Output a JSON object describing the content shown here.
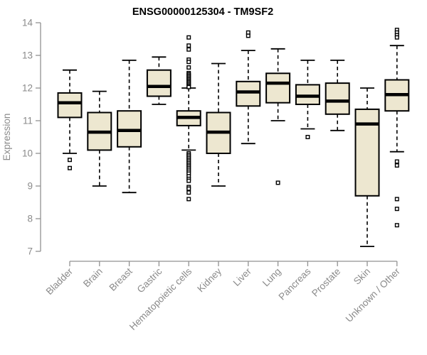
{
  "chart_data": {
    "type": "boxplot",
    "title": "ENSG00000125304 - TM9SF2",
    "ylabel": "Expression",
    "xlabel": "",
    "ylim": [
      7,
      14
    ],
    "yticks": [
      7,
      8,
      9,
      10,
      11,
      12,
      13,
      14
    ],
    "grid": false,
    "legend": false,
    "categories": [
      "Bladder",
      "Brain",
      "Breast",
      "Gastric",
      "Hematopoietic cells",
      "Kidney",
      "Liver",
      "Lung",
      "Pancreas",
      "Prostate",
      "Skin",
      "Unknown / Other"
    ],
    "series": [
      {
        "name": "Bladder",
        "whisker_low": 10.0,
        "q1": 11.1,
        "median": 11.55,
        "q3": 11.85,
        "whisker_high": 12.55,
        "outliers": [
          9.8,
          9.55
        ]
      },
      {
        "name": "Brain",
        "whisker_low": 9.0,
        "q1": 10.1,
        "median": 10.65,
        "q3": 11.25,
        "whisker_high": 11.9,
        "outliers": []
      },
      {
        "name": "Breast",
        "whisker_low": 8.8,
        "q1": 10.2,
        "median": 10.7,
        "q3": 11.3,
        "whisker_high": 12.85,
        "outliers": []
      },
      {
        "name": "Gastric",
        "whisker_low": 11.5,
        "q1": 11.75,
        "median": 12.05,
        "q3": 12.55,
        "whisker_high": 12.95,
        "outliers": []
      },
      {
        "name": "Hematopoietic cells",
        "whisker_low": 10.1,
        "q1": 10.85,
        "median": 11.1,
        "q3": 11.3,
        "whisker_high": 12.0,
        "outliers": [
          13.55,
          13.3,
          13.18,
          12.87,
          12.8,
          12.63,
          12.46,
          12.42,
          12.38,
          12.34,
          12.3,
          12.26,
          12.22,
          12.18,
          12.14,
          12.1,
          12.06,
          12.03,
          10.0,
          9.95,
          9.9,
          9.85,
          9.8,
          9.75,
          9.7,
          9.65,
          9.6,
          9.55,
          9.5,
          9.44,
          9.38,
          9.3,
          9.22,
          9.16,
          8.97,
          8.92,
          8.8,
          8.6
        ]
      },
      {
        "name": "Kidney",
        "whisker_low": 9.0,
        "q1": 10.0,
        "median": 10.65,
        "q3": 11.25,
        "whisker_high": 12.75,
        "outliers": []
      },
      {
        "name": "Liver",
        "whisker_low": 10.3,
        "q1": 11.45,
        "median": 11.88,
        "q3": 12.2,
        "whisker_high": 13.15,
        "outliers": [
          13.7,
          13.6
        ]
      },
      {
        "name": "Lung",
        "whisker_low": 11.0,
        "q1": 11.55,
        "median": 12.15,
        "q3": 12.45,
        "whisker_high": 13.2,
        "outliers": [
          9.1
        ]
      },
      {
        "name": "Pancreas",
        "whisker_low": 10.75,
        "q1": 11.5,
        "median": 11.75,
        "q3": 12.1,
        "whisker_high": 12.85,
        "outliers": [
          10.5
        ]
      },
      {
        "name": "Prostate",
        "whisker_low": 10.7,
        "q1": 11.2,
        "median": 11.6,
        "q3": 12.15,
        "whisker_high": 12.85,
        "outliers": []
      },
      {
        "name": "Skin",
        "whisker_low": 7.15,
        "q1": 8.7,
        "median": 10.9,
        "q3": 11.35,
        "whisker_high": 12.0,
        "outliers": []
      },
      {
        "name": "Unknown / Other",
        "whisker_low": 10.05,
        "q1": 11.3,
        "median": 11.8,
        "q3": 12.25,
        "whisker_high": 13.3,
        "outliers": [
          13.78,
          13.7,
          13.62,
          13.55,
          9.75,
          9.63,
          8.6,
          8.3,
          7.8
        ]
      }
    ],
    "colors": {
      "box_fill": "#EDE7D0",
      "box_stroke": "#000000",
      "median": "#000000",
      "whisker": "#000000",
      "outlier_stroke": "#000000",
      "axis_line": "#919191",
      "axis_text": "#8a8a8a",
      "title": "#000000",
      "background": "#ffffff"
    }
  }
}
